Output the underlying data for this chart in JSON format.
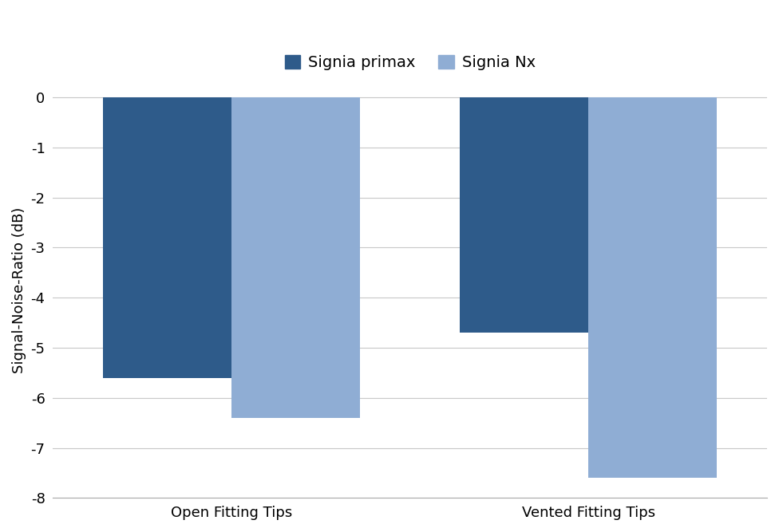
{
  "categories": [
    "Open Fitting Tips",
    "Vented Fitting Tips"
  ],
  "series": [
    {
      "name": "Signia primax",
      "values": [
        -5.6,
        -4.7
      ],
      "color": "#2E5B8A"
    },
    {
      "name": "Signia Nx",
      "values": [
        -6.4,
        -7.6
      ],
      "color": "#8FADD4"
    }
  ],
  "ylabel": "Signal-Noise-Ratio (dB)",
  "ylim": [
    -8,
    0.3
  ],
  "yticks": [
    0,
    -1,
    -2,
    -3,
    -4,
    -5,
    -6,
    -7,
    -8
  ],
  "bar_width": 0.18,
  "group_positions": [
    0.3,
    0.8
  ],
  "legend_fontsize": 14,
  "ylabel_fontsize": 13,
  "tick_fontsize": 13,
  "background_color": "#ffffff",
  "grid_color": "#c8c8c8"
}
